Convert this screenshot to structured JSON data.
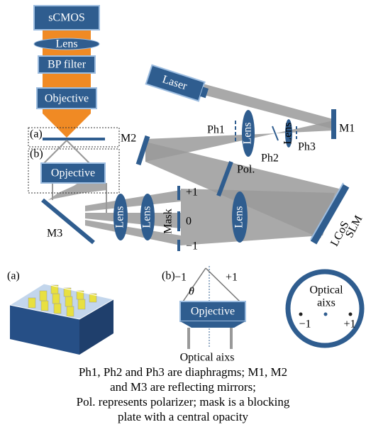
{
  "top_diagram": {
    "camera": "sCMOS",
    "tube_lens": "Lens",
    "filter": "BP filter",
    "objective": "Objective",
    "inset_a": "(a)",
    "inset_b": "(b)",
    "inset_objective": "Opjective",
    "laser": "Laser",
    "mirrors": [
      "M1",
      "M2",
      "M3"
    ],
    "pinholes": [
      "Ph1",
      "Ph2",
      "Ph3"
    ],
    "pinhole_lenses": [
      "Lens",
      "Lens"
    ],
    "relay_lenses": [
      "Lens",
      "Lens",
      "Lens"
    ],
    "polarizer": "Pol.",
    "orders": [
      "+1",
      "0",
      "−1"
    ],
    "mask": "Mask",
    "slm": [
      "LCoS",
      "SLM"
    ]
  },
  "bottom_panels": {
    "panel_a": "(a)",
    "panel_b": "(b)",
    "orders": [
      "−1",
      "+1"
    ],
    "angle": "θ",
    "objective": "Opjective",
    "axis_label": "Optical aixs",
    "pupil_axis": [
      "Optical",
      "aixs"
    ],
    "pupil_orders": [
      "−1",
      "+1"
    ]
  },
  "caption": [
    "Ph1, Ph2 and Ph3 are diaphragms; M1, M2",
    "and M3 are reflecting mirrors;",
    "Pol. represents polarizer; mask is a blocking",
    "plate with a central opacity"
  ]
}
